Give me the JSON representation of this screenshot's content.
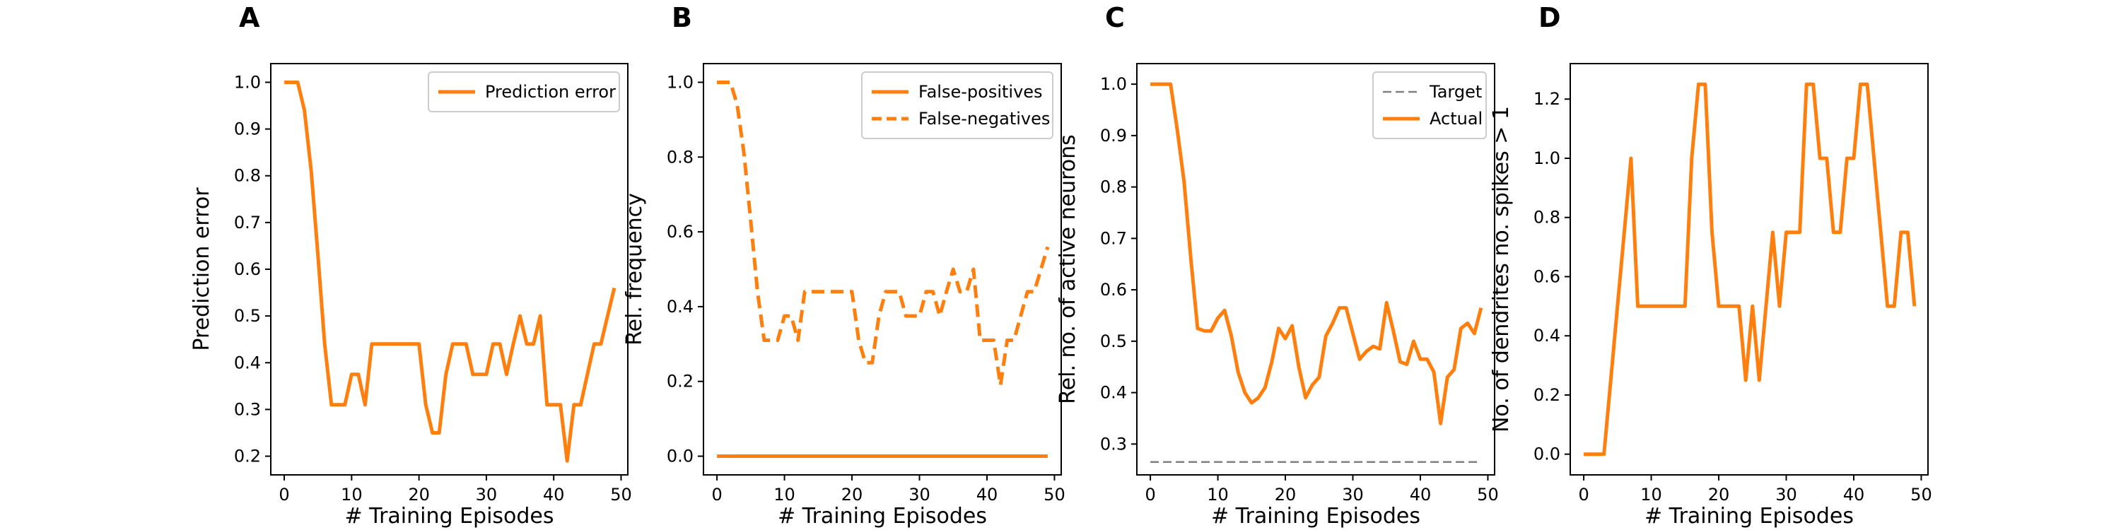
{
  "colors": {
    "series": "#ff7f0e",
    "target": "#808080",
    "axis": "#000000"
  },
  "chart_data": [
    {
      "type": "line",
      "panel": "A",
      "xlabel": "# Training Episodes",
      "ylabel": "Prediction error",
      "xlim": [
        -2,
        51
      ],
      "ylim": [
        0.16,
        1.04
      ],
      "xticks": [
        0,
        10,
        20,
        30,
        40,
        50
      ],
      "yticks": [
        0.2,
        0.3,
        0.4,
        0.5,
        0.6,
        0.7,
        0.8,
        0.9,
        1.0
      ],
      "ytick_labels": [
        "0.2",
        "0.3",
        "0.4",
        "0.5",
        "0.6",
        "0.7",
        "0.8",
        "0.9",
        "1.0"
      ],
      "legend_position": "top-right",
      "series": [
        {
          "name": "Prediction error",
          "style": "solid",
          "x": [
            0,
            1,
            2,
            3,
            4,
            5,
            6,
            7,
            8,
            9,
            10,
            11,
            12,
            13,
            14,
            15,
            16,
            17,
            18,
            19,
            20,
            21,
            22,
            23,
            24,
            25,
            26,
            27,
            28,
            29,
            30,
            31,
            32,
            33,
            34,
            35,
            36,
            37,
            38,
            39,
            40,
            41,
            42,
            43,
            44,
            45,
            46,
            47,
            48,
            49
          ],
          "y": [
            1.0,
            1.0,
            1.0,
            0.94,
            0.81,
            0.63,
            0.44,
            0.31,
            0.31,
            0.31,
            0.375,
            0.375,
            0.31,
            0.44,
            0.44,
            0.44,
            0.44,
            0.44,
            0.44,
            0.44,
            0.44,
            0.31,
            0.25,
            0.25,
            0.375,
            0.44,
            0.44,
            0.44,
            0.375,
            0.375,
            0.375,
            0.44,
            0.44,
            0.375,
            0.44,
            0.5,
            0.44,
            0.44,
            0.5,
            0.31,
            0.31,
            0.31,
            0.19,
            0.31,
            0.31,
            0.375,
            0.44,
            0.44,
            0.5,
            0.56
          ]
        }
      ]
    },
    {
      "type": "line",
      "panel": "B",
      "xlabel": "# Training Episodes",
      "ylabel": "Rel. frequency",
      "xlim": [
        -2,
        51
      ],
      "ylim": [
        -0.05,
        1.05
      ],
      "xticks": [
        0,
        10,
        20,
        30,
        40,
        50
      ],
      "yticks": [
        0.0,
        0.2,
        0.4,
        0.6,
        0.8,
        1.0
      ],
      "ytick_labels": [
        "0.0",
        "0.2",
        "0.4",
        "0.6",
        "0.8",
        "1.0"
      ],
      "legend_position": "top-right",
      "series": [
        {
          "name": "False-positives",
          "style": "solid",
          "x": [
            0,
            49
          ],
          "y": [
            0.0,
            0.0
          ]
        },
        {
          "name": "False-negatives",
          "style": "dashed",
          "x": [
            0,
            1,
            2,
            3,
            4,
            5,
            6,
            7,
            8,
            9,
            10,
            11,
            12,
            13,
            14,
            15,
            16,
            17,
            18,
            19,
            20,
            21,
            22,
            23,
            24,
            25,
            26,
            27,
            28,
            29,
            30,
            31,
            32,
            33,
            34,
            35,
            36,
            37,
            38,
            39,
            40,
            41,
            42,
            43,
            44,
            45,
            46,
            47,
            48,
            49
          ],
          "y": [
            1.0,
            1.0,
            1.0,
            0.94,
            0.81,
            0.63,
            0.44,
            0.31,
            0.31,
            0.31,
            0.375,
            0.375,
            0.31,
            0.44,
            0.44,
            0.44,
            0.44,
            0.44,
            0.44,
            0.44,
            0.44,
            0.31,
            0.25,
            0.25,
            0.375,
            0.44,
            0.44,
            0.44,
            0.375,
            0.375,
            0.375,
            0.44,
            0.44,
            0.375,
            0.44,
            0.5,
            0.44,
            0.44,
            0.5,
            0.31,
            0.31,
            0.31,
            0.19,
            0.31,
            0.31,
            0.375,
            0.44,
            0.44,
            0.5,
            0.56
          ]
        }
      ]
    },
    {
      "type": "line",
      "panel": "C",
      "xlabel": "# Training Episodes",
      "ylabel": "Rel. no. of active neurons",
      "xlim": [
        -2,
        51
      ],
      "ylim": [
        0.24,
        1.04
      ],
      "xticks": [
        0,
        10,
        20,
        30,
        40,
        50
      ],
      "yticks": [
        0.3,
        0.4,
        0.5,
        0.6,
        0.7,
        0.8,
        0.9,
        1.0
      ],
      "ytick_labels": [
        "0.3",
        "0.4",
        "0.5",
        "0.6",
        "0.7",
        "0.8",
        "0.9",
        "1.0"
      ],
      "legend_position": "top-right",
      "series": [
        {
          "name": "Target",
          "style": "dashed-target",
          "x": [
            0,
            49
          ],
          "y": [
            0.265,
            0.265
          ]
        },
        {
          "name": "Actual",
          "style": "solid",
          "x": [
            0,
            1,
            2,
            3,
            4,
            5,
            6,
            7,
            8,
            9,
            10,
            11,
            12,
            13,
            14,
            15,
            16,
            17,
            18,
            19,
            20,
            21,
            22,
            23,
            24,
            25,
            26,
            27,
            28,
            29,
            30,
            31,
            32,
            33,
            34,
            35,
            36,
            37,
            38,
            39,
            40,
            41,
            42,
            43,
            44,
            45,
            46,
            47,
            48,
            49
          ],
          "y": [
            1.0,
            1.0,
            1.0,
            1.0,
            0.91,
            0.81,
            0.66,
            0.525,
            0.52,
            0.52,
            0.545,
            0.56,
            0.51,
            0.44,
            0.4,
            0.38,
            0.39,
            0.41,
            0.46,
            0.525,
            0.505,
            0.53,
            0.45,
            0.39,
            0.415,
            0.43,
            0.51,
            0.535,
            0.565,
            0.565,
            0.515,
            0.465,
            0.48,
            0.49,
            0.485,
            0.575,
            0.52,
            0.46,
            0.455,
            0.5,
            0.465,
            0.465,
            0.44,
            0.34,
            0.43,
            0.445,
            0.525,
            0.535,
            0.515,
            0.565
          ]
        }
      ]
    },
    {
      "type": "line",
      "panel": "D",
      "xlabel": "# Training Episodes",
      "ylabel": "No. of dendrites no. spikes > 1",
      "xlim": [
        -2,
        51
      ],
      "ylim": [
        -0.07,
        1.32
      ],
      "xticks": [
        0,
        10,
        20,
        30,
        40,
        50
      ],
      "yticks": [
        0.0,
        0.2,
        0.4,
        0.6,
        0.8,
        1.0,
        1.2
      ],
      "ytick_labels": [
        "0.0",
        "0.2",
        "0.4",
        "0.6",
        "0.8",
        "1.0",
        "1.2"
      ],
      "legend_position": "",
      "series": [
        {
          "name": "",
          "style": "solid",
          "x": [
            0,
            1,
            2,
            3,
            4,
            5,
            6,
            7,
            8,
            9,
            10,
            11,
            12,
            13,
            14,
            15,
            16,
            17,
            18,
            19,
            20,
            21,
            22,
            23,
            24,
            25,
            26,
            27,
            28,
            29,
            30,
            31,
            32,
            33,
            34,
            35,
            36,
            37,
            38,
            39,
            40,
            41,
            42,
            43,
            44,
            45,
            46,
            47,
            48,
            49
          ],
          "y": [
            0,
            0,
            0,
            0,
            0.25,
            0.5,
            0.75,
            1.0,
            0.5,
            0.5,
            0.5,
            0.5,
            0.5,
            0.5,
            0.5,
            0.5,
            1.0,
            1.25,
            1.25,
            0.75,
            0.5,
            0.5,
            0.5,
            0.5,
            0.25,
            0.5,
            0.25,
            0.5,
            0.75,
            0.5,
            0.75,
            0.75,
            0.75,
            1.25,
            1.25,
            1.0,
            1.0,
            0.75,
            0.75,
            1.0,
            1.0,
            1.25,
            1.25,
            1.0,
            0.75,
            0.5,
            0.5,
            0.75,
            0.75,
            0.5
          ]
        }
      ]
    }
  ]
}
